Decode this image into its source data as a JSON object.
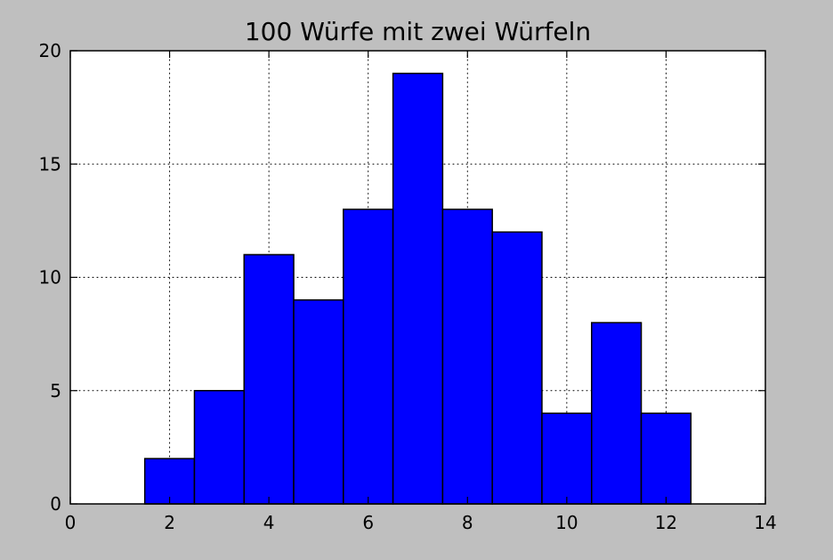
{
  "chart_data": {
    "type": "bar",
    "title": "100 Würfe mit zwei Würfeln",
    "xlabel": "",
    "ylabel": "",
    "xlim": [
      0,
      14
    ],
    "ylim": [
      0,
      20
    ],
    "x_ticks": [
      "0",
      "2",
      "4",
      "6",
      "8",
      "10",
      "12",
      "14"
    ],
    "y_ticks": [
      "0",
      "5",
      "10",
      "15",
      "20"
    ],
    "grid": true,
    "bins": [
      {
        "x": 2,
        "value": 2
      },
      {
        "x": 3,
        "value": 5
      },
      {
        "x": 4,
        "value": 11
      },
      {
        "x": 5,
        "value": 9
      },
      {
        "x": 6,
        "value": 13
      },
      {
        "x": 7,
        "value": 19
      },
      {
        "x": 8,
        "value": 13
      },
      {
        "x": 9,
        "value": 12
      },
      {
        "x": 10,
        "value": 4
      },
      {
        "x": 11,
        "value": 8
      },
      {
        "x": 12,
        "value": 4
      }
    ],
    "colors": {
      "bar_fill": "#0000ff",
      "bar_edge": "#000000",
      "plot_background": "#ffffff",
      "figure_background": "#bfbfbf",
      "grid": "#000000"
    }
  }
}
